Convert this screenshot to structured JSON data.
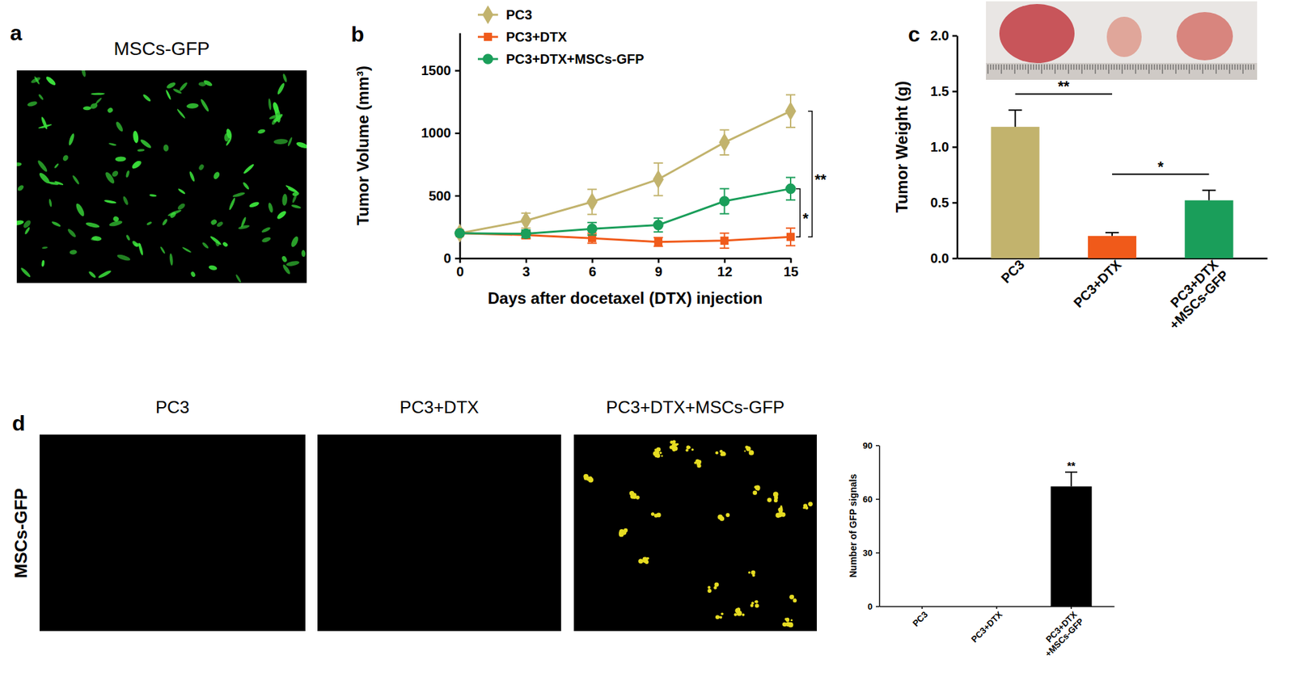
{
  "figure": {
    "panel_labels": [
      "a",
      "b",
      "c",
      "d"
    ],
    "panel_a_title": "MSCs-GFP",
    "panel_d_titles": [
      "PC3",
      "PC3+DTX",
      "PC3+DTX+MSCs-GFP"
    ],
    "panel_d_row_label": "MSCs-GFP"
  },
  "chart_data": [
    {
      "type": "line",
      "x_label": "Days after docetaxel (DTX) injection",
      "y_label": "Tumor Volume (mm³)",
      "x": [
        0,
        3,
        6,
        9,
        12,
        15
      ],
      "xlim": [
        0,
        15
      ],
      "xticks": [
        0,
        3,
        6,
        9,
        12,
        15
      ],
      "ylim": [
        0,
        1800
      ],
      "yticks": [
        0,
        500,
        1000,
        1500
      ],
      "legend": "upper left",
      "series": [
        {
          "name": "PC3",
          "color": "#c2b36d",
          "marker": "diamond",
          "values": [
            200,
            300,
            450,
            630,
            925,
            1175
          ],
          "errors": [
            0,
            60,
            100,
            130,
            100,
            130
          ]
        },
        {
          "name": "PC3+DTX",
          "color": "#f05a1a",
          "marker": "square",
          "values": [
            200,
            185,
            160,
            130,
            140,
            170
          ],
          "errors": [
            0,
            30,
            40,
            35,
            60,
            70
          ]
        },
        {
          "name": "PC3+DTX+MSCs-GFP",
          "color": "#1a9e5a",
          "marker": "circle",
          "values": [
            200,
            195,
            235,
            265,
            455,
            555
          ],
          "errors": [
            0,
            30,
            50,
            55,
            100,
            90
          ]
        }
      ],
      "annotations": [
        {
          "text": "**",
          "from": "PC3",
          "to": "PC3+DTX"
        },
        {
          "text": "*",
          "from": "PC3+DTX+MSCs-GFP",
          "to": "PC3+DTX"
        }
      ]
    },
    {
      "type": "bar",
      "y_label": "Tumor Weight (g)",
      "categories": [
        "PC3",
        "PC3+DTX",
        "PC3+DTX\n+MSCs-GFP"
      ],
      "values": [
        1.18,
        0.2,
        0.52
      ],
      "errors": [
        0.15,
        0.03,
        0.09
      ],
      "colors": [
        "#c2b36d",
        "#f05a1a",
        "#1a9e5a"
      ],
      "ylim": [
        0,
        2
      ],
      "yticks": [
        {
          "value": 0,
          "label": "0.0"
        },
        {
          "value": 0.5,
          "label": "0.5"
        },
        {
          "value": 1,
          "label": "1.0"
        },
        {
          "value": 1.5,
          "label": "1.5"
        },
        {
          "value": 2,
          "label": "2.0"
        }
      ],
      "annotations": [
        {
          "text": "**",
          "from": "PC3",
          "to": "PC3+DTX"
        },
        {
          "text": "*",
          "from": "PC3+DTX",
          "to": "PC3+DTX\n+MSCs-GFP"
        }
      ]
    },
    {
      "type": "bar",
      "y_label": "Number of GFP signals",
      "categories": [
        "PC3",
        "PC3+DTX",
        "PC3+DTX\n+MSCs-GFP"
      ],
      "values": [
        0,
        0,
        67
      ],
      "errors": [
        0,
        0,
        8
      ],
      "color": "#000000",
      "ylim": [
        0,
        90
      ],
      "yticks": [
        0,
        30,
        60,
        90
      ],
      "annotations": [
        {
          "text": "**",
          "category": "PC3+DTX\n+MSCs-GFP"
        }
      ]
    }
  ]
}
